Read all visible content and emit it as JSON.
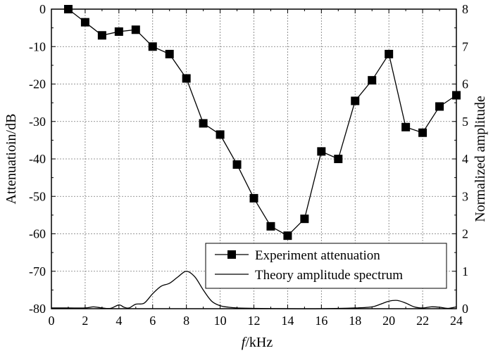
{
  "chart_data": {
    "type": "line",
    "title": "",
    "xlabel_var": "f",
    "xlabel_unit": "/kHz",
    "ylabel_left": "Attenuatioin/dB",
    "ylabel_right": "Normalized amplitude",
    "xlim": [
      0,
      24
    ],
    "ylim_left": [
      -80,
      0
    ],
    "ylim_right": [
      0,
      8
    ],
    "x_ticks": [
      "0",
      "2",
      "4",
      "6",
      "8",
      "10",
      "12",
      "14",
      "16",
      "18",
      "20",
      "22",
      "24"
    ],
    "y_left_ticks": [
      "0",
      "-10",
      "-20",
      "-30",
      "-40",
      "-50",
      "-60",
      "-70",
      "-80"
    ],
    "y_right_ticks": [
      "8",
      "7",
      "6",
      "5",
      "4",
      "3",
      "2",
      "1",
      "0"
    ],
    "grid": true,
    "legend_position": "bottom-right",
    "series": [
      {
        "name": "Experiment attenuation",
        "axis": "left",
        "marker": "square",
        "x": [
          1,
          2,
          3,
          4,
          5,
          6,
          7,
          8,
          9,
          10,
          11,
          12,
          13,
          14,
          15,
          16,
          17,
          18,
          19,
          20,
          21,
          22,
          23,
          24
        ],
        "y": [
          0,
          -3.5,
          -7,
          -6,
          -5.5,
          -10,
          -12,
          -18.5,
          -30.5,
          -33.5,
          -41.5,
          -50.5,
          -58,
          -60.5,
          -56,
          -38,
          -40,
          -24.5,
          -19,
          -12,
          -31.5,
          -33,
          -26,
          -23
        ]
      },
      {
        "name": "Theory amplitude spectrum",
        "axis": "right",
        "marker": "none",
        "x": [
          0,
          1,
          2,
          2.5,
          3,
          3.5,
          4,
          4.3,
          4.6,
          5,
          5.5,
          6,
          6.5,
          7,
          7.5,
          8,
          8.5,
          9,
          9.5,
          10,
          10.5,
          11,
          12,
          14,
          16,
          18,
          19,
          19.5,
          20,
          20.5,
          21,
          21.5,
          22,
          22.5,
          23,
          23.5,
          24
        ],
        "y": [
          0.02,
          0.02,
          0.02,
          0.05,
          0.02,
          0.01,
          0.1,
          0.04,
          0.02,
          0.12,
          0.15,
          0.4,
          0.6,
          0.68,
          0.85,
          1.0,
          0.85,
          0.5,
          0.2,
          0.08,
          0.04,
          0.02,
          0.01,
          0,
          0,
          0.02,
          0.05,
          0.12,
          0.2,
          0.22,
          0.15,
          0.05,
          0.02,
          0.05,
          0.04,
          0.01,
          0.05
        ]
      }
    ]
  }
}
